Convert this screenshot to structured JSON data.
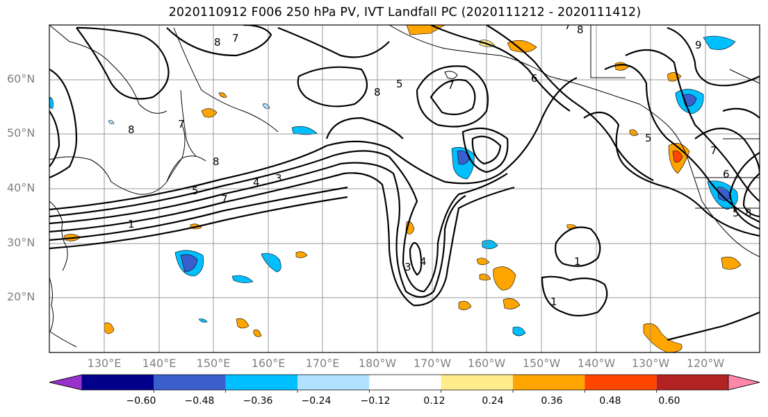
{
  "title": "2020110912 F006 250 hPa PV, IVT Landfall PC (2020111212 - 2020111412)",
  "lat_labels": [
    "60°N",
    "50°N",
    "40°N",
    "30°N",
    "20°N"
  ],
  "lon_labels": [
    "130°E",
    "140°E",
    "150°E",
    "160°E",
    "170°E",
    "180°W",
    "170°W",
    "160°W",
    "150°W",
    "140°W",
    "130°W",
    "120°W"
  ],
  "colorbar": {
    "ticks": [
      "−0.60",
      "−0.48",
      "−0.36",
      "−0.24",
      "−0.12",
      "0.12",
      "0.24",
      "0.36",
      "0.48",
      "0.60"
    ],
    "colors": [
      "#9932cc",
      "#00008b",
      "#3a5fcd",
      "#00bfff",
      "#b0e2ff",
      "#ffffff",
      "#ffec8b",
      "#ffa500",
      "#ff4500",
      "#b22222",
      "#ff88aa"
    ]
  },
  "contour_labels": [
    "8",
    "7",
    "8",
    "7",
    "9",
    "8",
    "5",
    "8",
    "7",
    "4",
    "3",
    "7",
    "5",
    "8",
    "7",
    "1",
    "6",
    "5",
    "4",
    "3",
    "1",
    "1",
    "7",
    "6",
    "5",
    "8"
  ],
  "colors": {
    "positive": "#ffa500",
    "positive_light": "#ffec8b",
    "negative": "#00bfff",
    "negative_strong": "#3a5fcd",
    "negative_light": "#b0e2ff"
  }
}
